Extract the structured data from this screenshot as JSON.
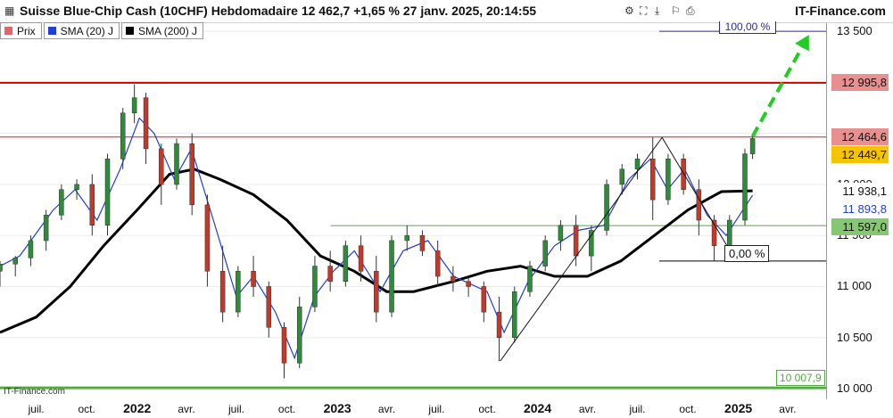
{
  "header": {
    "title": "Suisse Blue-Chip Cash (10CHF) Hebdomadaire 12 462,7 +1,65 % 27 janv. 2025, 20:14:55",
    "site": "IT-Finance.com"
  },
  "legend": {
    "items": [
      {
        "label": "Prix",
        "color": "#e06666"
      },
      {
        "label": "SMA (20) J",
        "color": "#1f3fd6"
      },
      {
        "label": "SMA (200) J",
        "color": "#000000"
      }
    ]
  },
  "watermark": "IT-Finance.com",
  "annotations": {
    "fib_top": "100,00 %",
    "fib_bottom": "0,00 %",
    "low_label": "10 007,9"
  },
  "badges": [
    {
      "text": "12 995,8",
      "value": 12995.8,
      "bg": "#e8908f",
      "fg": "#111111"
    },
    {
      "text": "12 464,6",
      "value": 12464.6,
      "bg": "#e8908f",
      "fg": "#111111"
    },
    {
      "text": "12 449,7",
      "value": 12449.7,
      "bg": "#f5c400",
      "fg": "#111111"
    },
    {
      "text": "11 938,1",
      "value": 11938.1,
      "bg": "#ffffff",
      "fg": "#111111"
    },
    {
      "text": "11 893,8",
      "value": 11893.8,
      "bg": "#ffffff",
      "fg": "#1f3fd6"
    },
    {
      "text": "11 597,0",
      "value": 11597.0,
      "bg": "#86c872",
      "fg": "#111111"
    }
  ],
  "chart_data": {
    "type": "line",
    "title": "Suisse Blue-Chip Cash (10CHF) Hebdomadaire",
    "y_ticks": [
      {
        "label": "13 500",
        "value": 13500
      },
      {
        "label": "13 000",
        "value": 13000
      },
      {
        "label": "12 500",
        "value": 12500
      },
      {
        "label": "12 000",
        "value": 12000
      },
      {
        "label": "11 500",
        "value": 11500
      },
      {
        "label": "11 000",
        "value": 11000
      },
      {
        "label": "10 500",
        "value": 10500
      },
      {
        "label": "10 000",
        "value": 10000
      }
    ],
    "x_ticks": [
      {
        "label": "juil.",
        "date": "2021-07-01",
        "year": false
      },
      {
        "label": "oct.",
        "date": "2021-10-01",
        "year": false
      },
      {
        "label": "2022",
        "date": "2022-01-01",
        "year": true
      },
      {
        "label": "avr.",
        "date": "2022-04-01",
        "year": false
      },
      {
        "label": "juil.",
        "date": "2022-07-01",
        "year": false
      },
      {
        "label": "oct.",
        "date": "2022-10-01",
        "year": false
      },
      {
        "label": "2023",
        "date": "2023-01-01",
        "year": true
      },
      {
        "label": "avr.",
        "date": "2023-04-01",
        "year": false
      },
      {
        "label": "juil.",
        "date": "2023-07-01",
        "year": false
      },
      {
        "label": "oct.",
        "date": "2023-10-01",
        "year": false
      },
      {
        "label": "2024",
        "date": "2024-01-01",
        "year": true
      },
      {
        "label": "avr.",
        "date": "2024-04-01",
        "year": false
      },
      {
        "label": "juil.",
        "date": "2024-07-01",
        "year": false
      },
      {
        "label": "oct.",
        "date": "2024-10-01",
        "year": false
      },
      {
        "label": "2025",
        "date": "2025-01-01",
        "year": true
      },
      {
        "label": "avr.",
        "date": "2025-04-01",
        "year": false
      }
    ],
    "x_range": [
      "2021-04-26",
      "2025-06-10"
    ],
    "y_range": [
      10000,
      13580
    ],
    "horizontal_lines": [
      {
        "name": "resistance-major",
        "value": 12995.8,
        "color": "#cc0000",
        "from": "2021-04-26",
        "to": "2025-06-10"
      },
      {
        "name": "resistance",
        "value": 12464.6,
        "color": "#cc2222",
        "from": "2021-04-26",
        "to": "2025-06-10"
      },
      {
        "name": "support",
        "value": 11597.0,
        "color": "#55aa44",
        "from": "2022-12-20",
        "to": "2025-06-10"
      },
      {
        "name": "low-line",
        "value": 10007.9,
        "color": "#55aa44",
        "from": "2021-04-26",
        "to": "2025-06-10"
      },
      {
        "name": "fib-100",
        "value": 13500,
        "color": "#2a2aa0",
        "from": "2024-08-10",
        "to": "2025-06-10"
      },
      {
        "name": "fib-0",
        "value": 11250,
        "color": "#000000",
        "from": "2024-08-10",
        "to": "2025-06-10"
      }
    ],
    "trend_lines": [
      {
        "name": "trend-up",
        "points": [
          [
            "2023-10-25",
            10270
          ],
          [
            "2024-08-15",
            12460
          ]
        ]
      },
      {
        "name": "trend-down",
        "points": [
          [
            "2024-08-15",
            12460
          ],
          [
            "2024-12-28",
            11250
          ]
        ]
      }
    ],
    "projection": {
      "points": [
        [
          "2025-01-27",
          12470
        ],
        [
          "2025-05-05",
          13420
        ]
      ],
      "color": "#22cc22"
    },
    "ohlc": [
      [
        "2021-04-26",
        11150,
        11250,
        11000,
        11220
      ],
      [
        "2021-05-24",
        11220,
        11300,
        11100,
        11280
      ],
      [
        "2021-06-21",
        11280,
        11500,
        11200,
        11450
      ],
      [
        "2021-07-19",
        11450,
        11750,
        11350,
        11700
      ],
      [
        "2021-08-16",
        11700,
        12000,
        11650,
        11950
      ],
      [
        "2021-09-13",
        11950,
        12050,
        11850,
        12000
      ],
      [
        "2021-10-11",
        12000,
        12100,
        11500,
        11600
      ],
      [
        "2021-11-08",
        11600,
        12300,
        11500,
        12250
      ],
      [
        "2021-12-06",
        12250,
        12750,
        12150,
        12700
      ],
      [
        "2021-12-27",
        12700,
        12980,
        12600,
        12850
      ],
      [
        "2022-01-17",
        12850,
        12900,
        12200,
        12350
      ],
      [
        "2022-02-14",
        12350,
        12400,
        11800,
        12000
      ],
      [
        "2022-03-14",
        12000,
        12450,
        11950,
        12400
      ],
      [
        "2022-04-11",
        12400,
        12500,
        11700,
        11800
      ],
      [
        "2022-05-09",
        11800,
        11900,
        11000,
        11150
      ],
      [
        "2022-06-06",
        11150,
        11400,
        10650,
        10750
      ],
      [
        "2022-07-04",
        10750,
        11200,
        10700,
        11150
      ],
      [
        "2022-08-01",
        11150,
        11300,
        10900,
        11000
      ],
      [
        "2022-08-29",
        11000,
        11050,
        10500,
        10600
      ],
      [
        "2022-09-26",
        10600,
        10650,
        10100,
        10250
      ],
      [
        "2022-10-24",
        10250,
        10900,
        10200,
        10800
      ],
      [
        "2022-11-21",
        10800,
        11300,
        10750,
        11200
      ],
      [
        "2022-12-19",
        11200,
        11350,
        10950,
        11050
      ],
      [
        "2023-01-16",
        11050,
        11450,
        11000,
        11400
      ],
      [
        "2023-02-13",
        11400,
        11500,
        11050,
        11150
      ],
      [
        "2023-03-13",
        11150,
        11300,
        10650,
        10750
      ],
      [
        "2023-04-10",
        10750,
        11500,
        10700,
        11450
      ],
      [
        "2023-05-08",
        11450,
        11600,
        11350,
        11500
      ],
      [
        "2023-06-05",
        11500,
        11550,
        11300,
        11350
      ],
      [
        "2023-07-03",
        11350,
        11450,
        11000,
        11100
      ],
      [
        "2023-07-31",
        11100,
        11200,
        10950,
        11050
      ],
      [
        "2023-08-28",
        11050,
        11100,
        10900,
        11000
      ],
      [
        "2023-09-25",
        11000,
        11050,
        10650,
        10750
      ],
      [
        "2023-10-23",
        10750,
        10900,
        10270,
        10500
      ],
      [
        "2023-11-20",
        10500,
        11000,
        10450,
        10950
      ],
      [
        "2023-12-18",
        10950,
        11250,
        10900,
        11200
      ],
      [
        "2024-01-15",
        11200,
        11500,
        11150,
        11450
      ],
      [
        "2024-02-12",
        11450,
        11650,
        11350,
        11600
      ],
      [
        "2024-03-11",
        11600,
        11700,
        11200,
        11300
      ],
      [
        "2024-04-08",
        11300,
        11600,
        11150,
        11550
      ],
      [
        "2024-05-06",
        11550,
        12050,
        11500,
        12000
      ],
      [
        "2024-06-03",
        12000,
        12200,
        11900,
        12150
      ],
      [
        "2024-07-01",
        12150,
        12300,
        12050,
        12250
      ],
      [
        "2024-07-29",
        12250,
        12460,
        11650,
        11850
      ],
      [
        "2024-08-26",
        11850,
        12300,
        11800,
        12250
      ],
      [
        "2024-09-23",
        12250,
        12300,
        11900,
        11950
      ],
      [
        "2024-10-21",
        11950,
        12050,
        11500,
        11650
      ],
      [
        "2024-11-18",
        11650,
        11700,
        11250,
        11400
      ],
      [
        "2024-12-16",
        11400,
        11700,
        11300,
        11650
      ],
      [
        "2025-01-13",
        11650,
        12350,
        11600,
        12300
      ],
      [
        "2025-01-27",
        12300,
        12470,
        12250,
        12450
      ]
    ],
    "sma20": [
      [
        "2021-04-26",
        11200
      ],
      [
        "2021-06-01",
        11300
      ],
      [
        "2021-08-01",
        11750
      ],
      [
        "2021-09-10",
        11950
      ],
      [
        "2021-10-20",
        11650
      ],
      [
        "2021-12-01",
        12150
      ],
      [
        "2022-01-05",
        12650
      ],
      [
        "2022-02-01",
        12500
      ],
      [
        "2022-03-10",
        12050
      ],
      [
        "2022-04-10",
        12350
      ],
      [
        "2022-05-20",
        11650
      ],
      [
        "2022-07-01",
        10900
      ],
      [
        "2022-08-01",
        11100
      ],
      [
        "2022-09-10",
        10750
      ],
      [
        "2022-10-15",
        10300
      ],
      [
        "2022-11-20",
        10900
      ],
      [
        "2022-12-25",
        11150
      ],
      [
        "2023-02-01",
        11350
      ],
      [
        "2023-03-20",
        10950
      ],
      [
        "2023-05-01",
        11350
      ],
      [
        "2023-06-15",
        11450
      ],
      [
        "2023-08-01",
        11100
      ],
      [
        "2023-10-01",
        10950
      ],
      [
        "2023-11-01",
        10550
      ],
      [
        "2023-12-15",
        11050
      ],
      [
        "2024-02-01",
        11400
      ],
      [
        "2024-03-15",
        11550
      ],
      [
        "2024-05-01",
        11600
      ],
      [
        "2024-06-15",
        12050
      ],
      [
        "2024-07-25",
        12250
      ],
      [
        "2024-08-25",
        11950
      ],
      [
        "2024-09-25",
        12150
      ],
      [
        "2024-11-05",
        11700
      ],
      [
        "2024-12-10",
        11500
      ],
      [
        "2025-01-27",
        11894
      ]
    ],
    "sma200": [
      [
        "2021-04-26",
        10550
      ],
      [
        "2021-07-01",
        10700
      ],
      [
        "2021-09-01",
        11000
      ],
      [
        "2021-11-01",
        11400
      ],
      [
        "2022-01-01",
        11750
      ],
      [
        "2022-03-01",
        12100
      ],
      [
        "2022-04-15",
        12150
      ],
      [
        "2022-06-01",
        12050
      ],
      [
        "2022-08-01",
        11900
      ],
      [
        "2022-10-01",
        11650
      ],
      [
        "2022-12-01",
        11300
      ],
      [
        "2023-02-01",
        11150
      ],
      [
        "2023-04-01",
        10950
      ],
      [
        "2023-05-20",
        10950
      ],
      [
        "2023-08-01",
        11050
      ],
      [
        "2023-10-01",
        11150
      ],
      [
        "2023-12-01",
        11200
      ],
      [
        "2024-02-01",
        11100
      ],
      [
        "2024-04-01",
        11100
      ],
      [
        "2024-06-01",
        11250
      ],
      [
        "2024-08-01",
        11500
      ],
      [
        "2024-10-01",
        11750
      ],
      [
        "2024-12-01",
        11930
      ],
      [
        "2025-01-27",
        11938
      ]
    ]
  }
}
